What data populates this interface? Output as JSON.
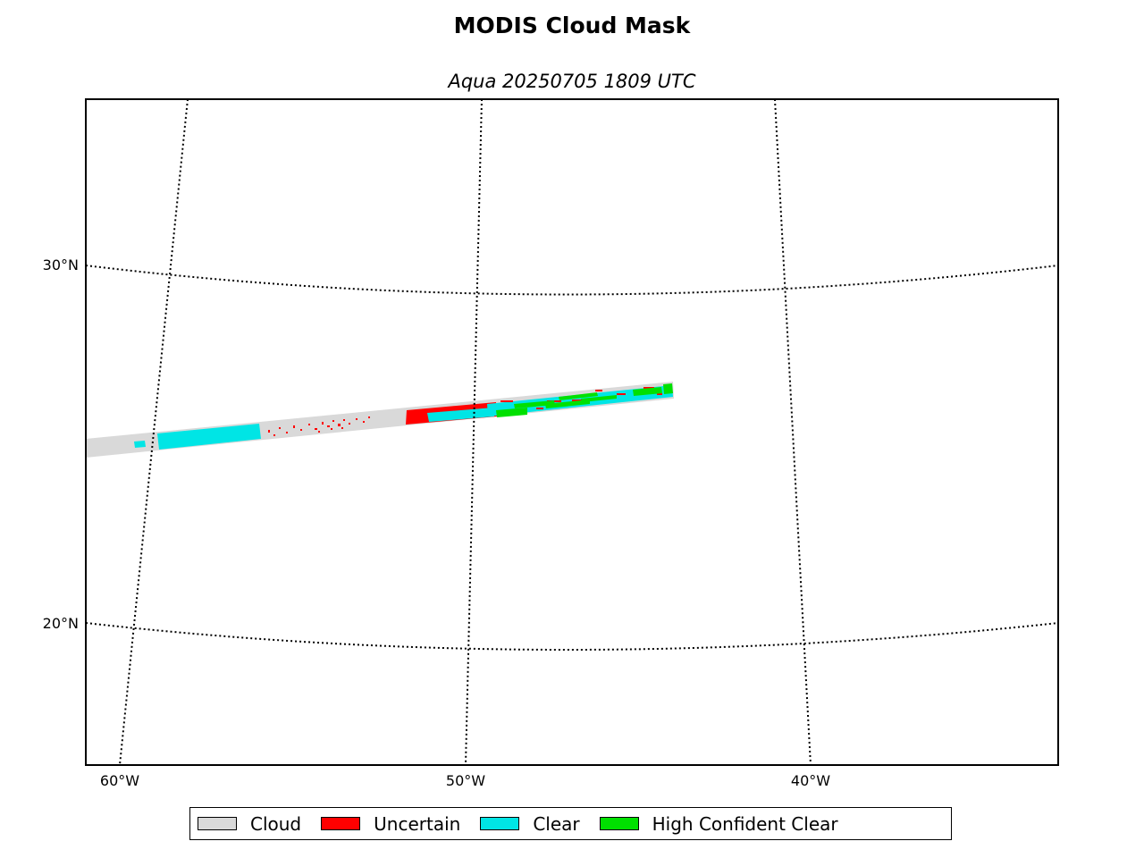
{
  "title": "MODIS Cloud Mask",
  "subtitle": "Aqua 20250705 1809 UTC",
  "lat_labels": [
    "30°N",
    "20°N"
  ],
  "lon_labels": [
    "60°W",
    "50°W",
    "40°W"
  ],
  "legend": [
    {
      "label": "Cloud",
      "color": "#d9d9d9"
    },
    {
      "label": "Uncertain",
      "color": "#ff0000"
    },
    {
      "label": "Clear",
      "color": "#00e5e5"
    },
    {
      "label": "High Confident Clear",
      "color": "#00e000"
    }
  ],
  "colors": {
    "cloud": "#d9d9d9",
    "uncertain": "#ff0000",
    "clear": "#00e5e5",
    "high_confident_clear": "#00e000"
  }
}
